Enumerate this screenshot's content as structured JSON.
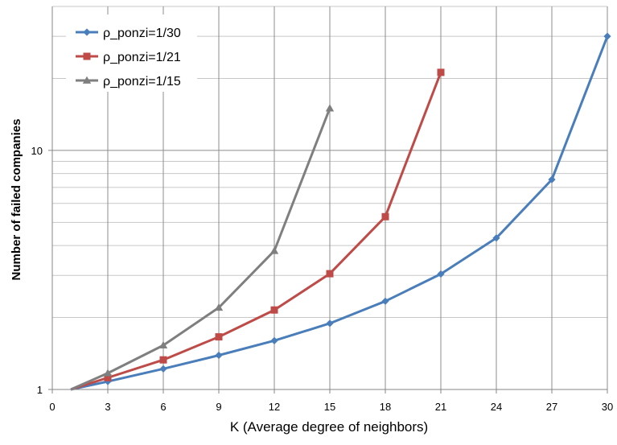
{
  "chart_data": {
    "type": "line",
    "title": "",
    "xlabel": "K (Average degree of neighbors)",
    "ylabel": "Number of failed companies",
    "x_ticks": [
      0,
      3,
      6,
      9,
      12,
      15,
      18,
      21,
      24,
      27,
      30
    ],
    "xlim": [
      0,
      30
    ],
    "y_scale": "log",
    "ylim": [
      1,
      40
    ],
    "y_tick_labels": [
      {
        "value": 1,
        "label": "1"
      },
      {
        "value": 10,
        "label": "10"
      }
    ],
    "y_minor_gridlines": [
      2,
      3,
      4,
      5,
      6,
      7,
      8,
      9,
      20,
      30,
      40
    ],
    "grid": true,
    "legend_position": "top-left",
    "series": [
      {
        "name": "ρ_ponzi=1/30",
        "color": "#4a7ebb",
        "marker": "diamond",
        "points": [
          {
            "x": 1,
            "y": 1.0
          },
          {
            "x": 3,
            "y": 1.08
          },
          {
            "x": 6,
            "y": 1.22
          },
          {
            "x": 9,
            "y": 1.39
          },
          {
            "x": 12,
            "y": 1.6
          },
          {
            "x": 15,
            "y": 1.89
          },
          {
            "x": 18,
            "y": 2.34
          },
          {
            "x": 21,
            "y": 3.04
          },
          {
            "x": 24,
            "y": 4.3
          },
          {
            "x": 27,
            "y": 7.55
          },
          {
            "x": 30,
            "y": 30.0
          }
        ]
      },
      {
        "name": "ρ_ponzi=1/21",
        "color": "#be4b48",
        "marker": "square",
        "points": [
          {
            "x": 1,
            "y": 1.0
          },
          {
            "x": 3,
            "y": 1.12
          },
          {
            "x": 6,
            "y": 1.33
          },
          {
            "x": 9,
            "y": 1.66
          },
          {
            "x": 12,
            "y": 2.15
          },
          {
            "x": 15,
            "y": 3.05
          },
          {
            "x": 18,
            "y": 5.28
          },
          {
            "x": 21,
            "y": 21.2
          }
        ]
      },
      {
        "name": "ρ_ponzi=1/15",
        "color": "#7f7f7f",
        "marker": "triangle",
        "points": [
          {
            "x": 1,
            "y": 1.0
          },
          {
            "x": 3,
            "y": 1.17
          },
          {
            "x": 6,
            "y": 1.53
          },
          {
            "x": 9,
            "y": 2.2
          },
          {
            "x": 12,
            "y": 3.8
          },
          {
            "x": 15,
            "y": 15.0
          }
        ]
      }
    ]
  }
}
